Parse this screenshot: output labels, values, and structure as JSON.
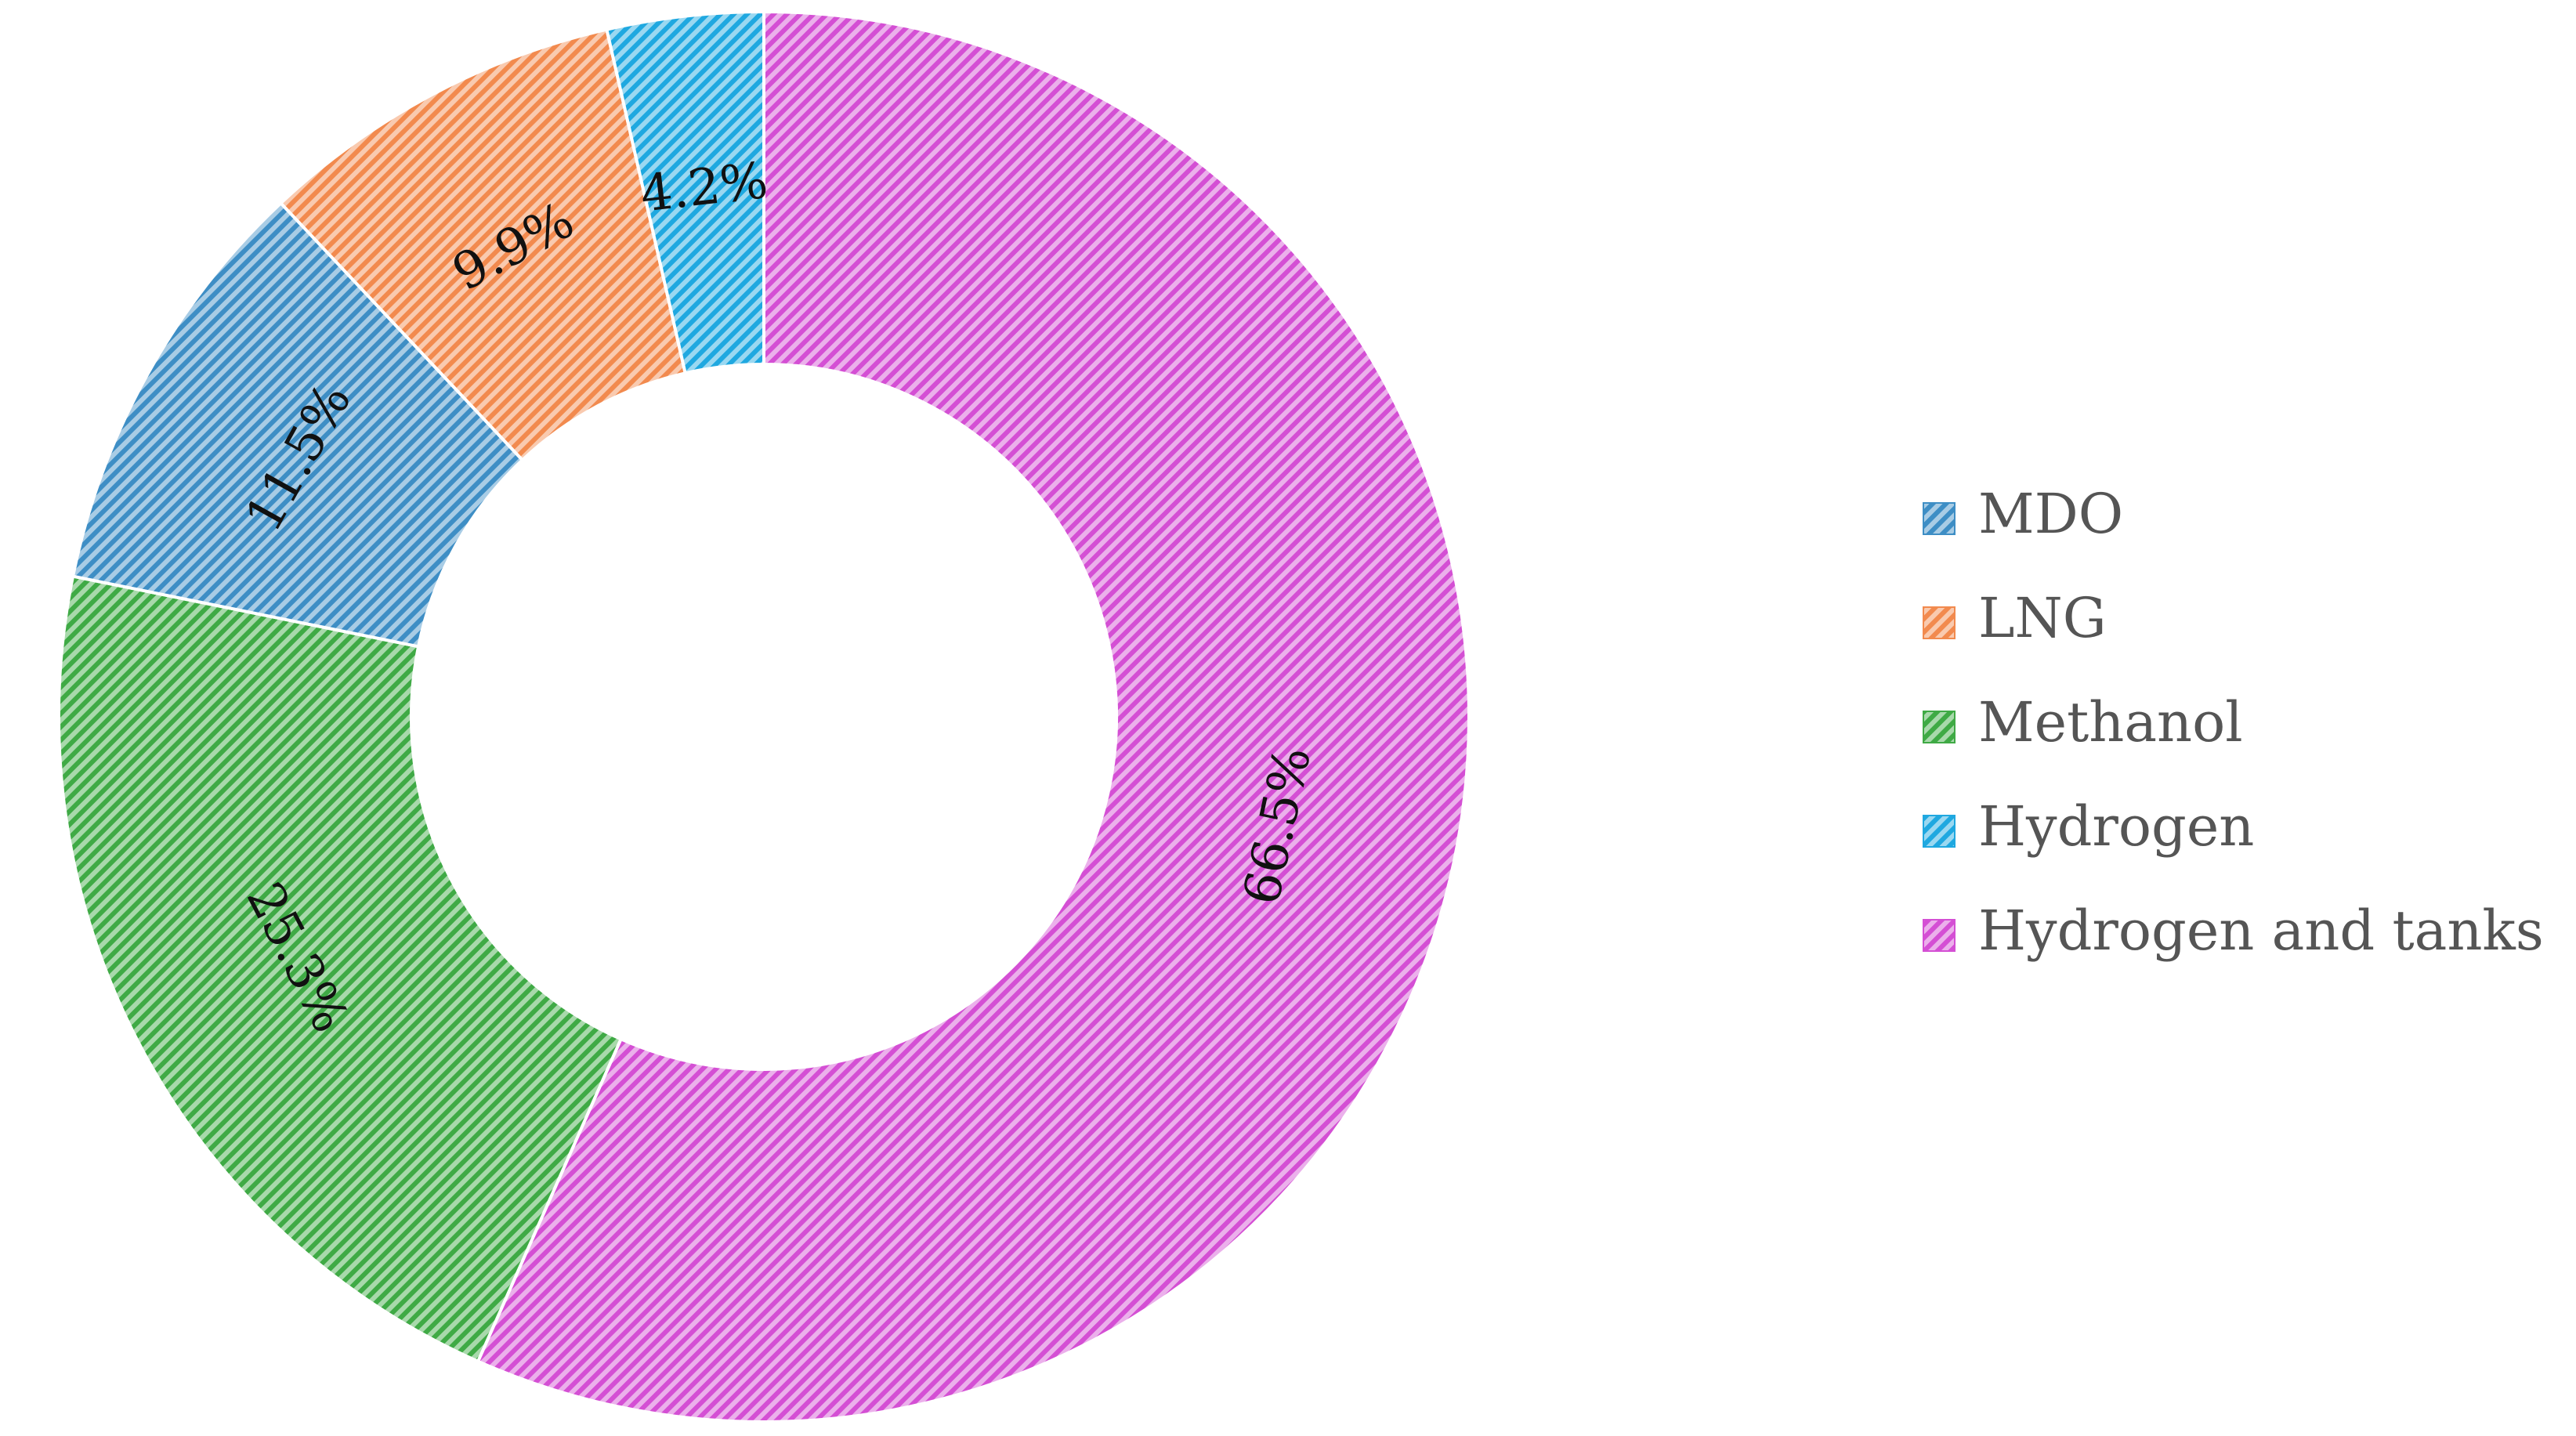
{
  "chart_data": {
    "type": "pie",
    "donut": true,
    "start": "12 o'clock",
    "direction": "clockwise",
    "legend_position": "right",
    "slices": [
      {
        "name": "Hydrogen and tanks",
        "value": 66.5,
        "label": "66.5%",
        "color": "#d44fd4"
      },
      {
        "name": "Methanol",
        "value": 25.3,
        "label": "25.3%",
        "color": "#3faa45"
      },
      {
        "name": "MDO",
        "value": 11.5,
        "label": "11.5%",
        "color": "#3e8ec5"
      },
      {
        "name": "LNG",
        "value": 9.9,
        "label": "9.9%",
        "color": "#f28a4e"
      },
      {
        "name": "Hydrogen",
        "value": 4.2,
        "label": "4.2%",
        "color": "#1fa8e0"
      }
    ],
    "legend": [
      {
        "label": "MDO",
        "color": "#3e8ec5"
      },
      {
        "label": "LNG",
        "color": "#f28a4e"
      },
      {
        "label": "Methanol",
        "color": "#3faa45"
      },
      {
        "label": "Hydrogen",
        "color": "#1fa8e0"
      },
      {
        "label": "Hydrogen and tanks",
        "color": "#d44fd4"
      }
    ]
  }
}
